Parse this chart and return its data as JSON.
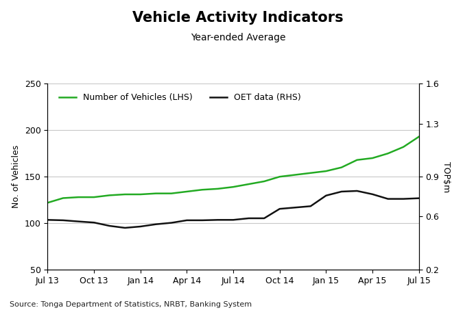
{
  "title": "Vehicle Activity Indicators",
  "subtitle": "Year-ended Average",
  "ylabel_left": "No. of Vehicles",
  "ylabel_right": "TOP$m",
  "source": "Source: Tonga Department of Statistics, NRBT, Banking System",
  "legend": [
    "Number of Vehicles (LHS)",
    "OET data (RHS)"
  ],
  "x_labels": [
    "Jul 13",
    "Oct 13",
    "Jan 14",
    "Apr 14",
    "Jul 14",
    "Oct 14",
    "Jan 15",
    "Apr 15",
    "Jul 15"
  ],
  "x_indices": [
    0,
    3,
    6,
    9,
    12,
    15,
    18,
    21,
    24
  ],
  "lhs_data_x": [
    0,
    1,
    2,
    3,
    4,
    5,
    6,
    7,
    8,
    9,
    10,
    11,
    12,
    13,
    14,
    15,
    16,
    17,
    18,
    19,
    20,
    21,
    22,
    23,
    24
  ],
  "lhs_data_y": [
    122,
    127,
    128,
    128,
    130,
    131,
    131,
    132,
    132,
    134,
    136,
    137,
    139,
    142,
    145,
    150,
    152,
    154,
    156,
    160,
    168,
    170,
    175,
    182,
    193
  ],
  "rhs_data_x": [
    0,
    1,
    2,
    3,
    4,
    5,
    6,
    7,
    8,
    9,
    10,
    11,
    12,
    13,
    14,
    15,
    16,
    17,
    18,
    19,
    20,
    21,
    22,
    23,
    24
  ],
  "rhs_data_y": [
    0.575,
    0.572,
    0.563,
    0.555,
    0.53,
    0.515,
    0.525,
    0.542,
    0.553,
    0.572,
    0.572,
    0.575,
    0.575,
    0.587,
    0.587,
    0.658,
    0.668,
    0.678,
    0.758,
    0.788,
    0.793,
    0.768,
    0.733,
    0.733,
    0.738
  ],
  "lhs_ylim": [
    50,
    250
  ],
  "rhs_ylim": [
    0.2,
    1.6
  ],
  "lhs_yticks": [
    50,
    100,
    150,
    200,
    250
  ],
  "rhs_yticks": [
    0.2,
    0.6,
    0.9,
    1.3,
    1.6
  ],
  "color_lhs": "#22aa22",
  "color_rhs": "#111111",
  "line_width": 1.8,
  "title_fontsize": 15,
  "subtitle_fontsize": 10,
  "axis_label_fontsize": 9,
  "tick_fontsize": 9,
  "legend_fontsize": 9,
  "source_fontsize": 8,
  "background_color": "#ffffff",
  "grid_color": "#c8c8c8"
}
